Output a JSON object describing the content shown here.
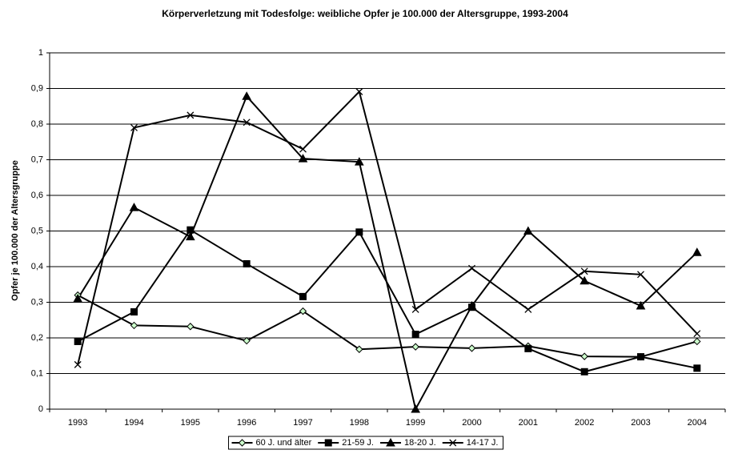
{
  "chart_data": {
    "type": "line",
    "title": "Körperverletzung mit Todesfolge: weibliche Opfer je 100.000 der Altersgruppe, 1993-2004",
    "y_label": "Opfer je 100.000 der Altersgruppe",
    "categories": [
      "1993",
      "1994",
      "1995",
      "1996",
      "1997",
      "1998",
      "1999",
      "2000",
      "2001",
      "2002",
      "2003",
      "2004"
    ],
    "series": [
      {
        "name": "60 J. und älter",
        "color": "#000000",
        "marker": "diamond",
        "marker_fill": "#ccffcc",
        "values": [
          0.32,
          0.235,
          0.232,
          0.192,
          0.275,
          0.168,
          0.175,
          0.171,
          0.177,
          0.148,
          0.147,
          0.19
        ]
      },
      {
        "name": "21-59 J.",
        "color": "#000000",
        "marker": "square",
        "marker_fill": "#000000",
        "values": [
          0.19,
          0.273,
          0.503,
          0.408,
          0.316,
          0.497,
          0.21,
          0.286,
          0.17,
          0.105,
          0.147,
          0.115
        ]
      },
      {
        "name": "18-20 J.",
        "color": "#000000",
        "marker": "triangle",
        "marker_fill": "#000000",
        "values": [
          0.31,
          0.566,
          0.484,
          0.878,
          0.703,
          0.694,
          0,
          0.29,
          0.5,
          0.36,
          0.29,
          0.44
        ]
      },
      {
        "name": "14-17 J.",
        "color": "#000000",
        "marker": "x",
        "marker_fill": "#000000",
        "values": [
          0.125,
          0.79,
          0.825,
          0.805,
          0.73,
          0.891,
          0.28,
          0.395,
          0.28,
          0.387,
          0.378,
          0.212
        ]
      }
    ],
    "ylim": [
      0,
      1
    ],
    "yticks": [
      0,
      {
        "value": 0.1,
        "label": "0,1"
      },
      {
        "value": 0.2,
        "label": "0,2"
      },
      {
        "value": 0.3,
        "label": "0,3"
      },
      {
        "value": 0.4,
        "label": "0,4"
      },
      {
        "value": 0.5,
        "label": "0,5"
      },
      {
        "value": 0.6,
        "label": "0,6"
      },
      {
        "value": 0.7,
        "label": "0,7"
      },
      {
        "value": 0.8,
        "label": "0,8"
      },
      {
        "value": 0.9,
        "label": "0,9"
      },
      1
    ],
    "grid": true,
    "legend": "bottom"
  }
}
